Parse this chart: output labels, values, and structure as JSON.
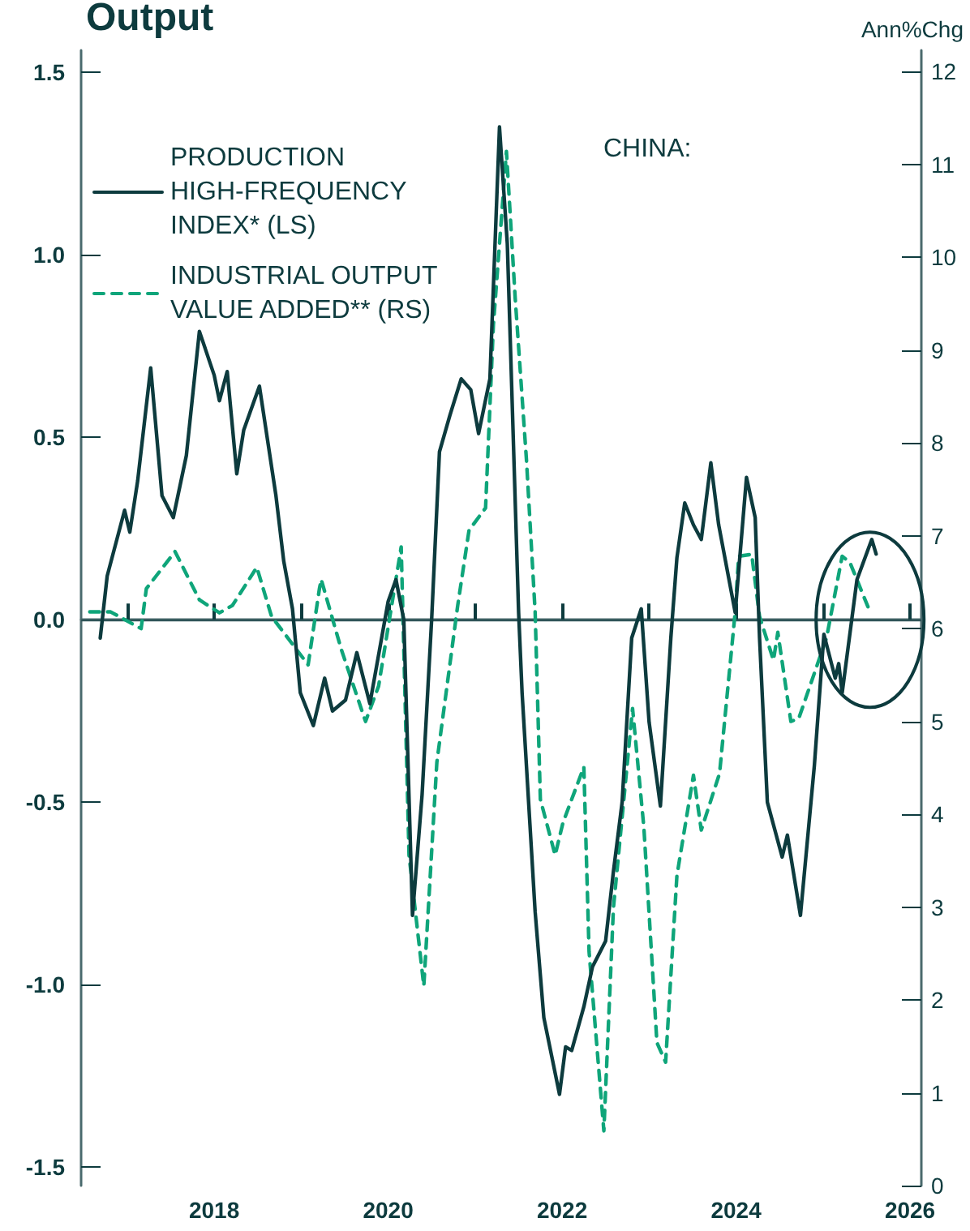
{
  "chart_data": {
    "type": "line",
    "title": "Output",
    "y2label": "Ann%Chg",
    "annotations": [
      "CHINA:"
    ],
    "xlim": [
      2016.47,
      2026.13
    ],
    "xticks": [
      {
        "value": 2017,
        "label": null
      },
      2018,
      {
        "value": 2019,
        "label": null
      },
      2020,
      {
        "value": 2021,
        "label": null
      },
      2022,
      {
        "value": 2023,
        "label": null
      },
      2024,
      {
        "value": 2025,
        "label": null
      },
      2026
    ],
    "ylim": [
      -1.55,
      1.56
    ],
    "yticks": [
      -1.5,
      {
        "value": -1,
        "label": "-1.0"
      },
      -0.5,
      {
        "value": 0,
        "label": "0.0"
      },
      0.5,
      {
        "value": 1,
        "label": "1.0"
      },
      1.5
    ],
    "y2lim": [
      0,
      12.23
    ],
    "y2ticks": [
      0,
      1,
      2,
      3,
      4,
      5,
      6,
      7,
      8,
      9,
      10,
      11,
      12
    ],
    "ref_lines": [
      {
        "axis": "y",
        "value": 0,
        "color": "#2f5458",
        "line_style": "solid"
      }
    ],
    "legend": "top left",
    "grid": false,
    "marker": "none",
    "series": [
      {
        "name": "PRODUCTION\nHIGH-FREQUENCY\nINDEX* (LS)",
        "color": "#0d3b3e",
        "line_style": "solid",
        "axis": "y",
        "x": [
          2016.69,
          2016.77,
          2016.97,
          2017.03,
          2017.12,
          2017.27,
          2017.4,
          2017.53,
          2017.68,
          2017.83,
          2018.0,
          2018.06,
          2018.15,
          2018.26,
          2018.34,
          2018.52,
          2018.71,
          2018.8,
          2018.9,
          2018.99,
          2019.14,
          2019.27,
          2019.36,
          2019.51,
          2019.64,
          2019.79,
          2020.0,
          2020.09,
          2020.18,
          2020.28,
          2020.39,
          2020.5,
          2020.59,
          2020.71,
          2020.84,
          2020.95,
          2021.04,
          2021.17,
          2021.28,
          2021.37,
          2021.5,
          2021.54,
          2021.69,
          2021.79,
          2021.97,
          2022.04,
          2022.11,
          2022.25,
          2022.35,
          2022.5,
          2022.59,
          2022.69,
          2022.8,
          2022.91,
          2023.0,
          2023.13,
          2023.25,
          2023.32,
          2023.41,
          2023.51,
          2023.6,
          2023.71,
          2023.8,
          2023.99,
          2024.12,
          2024.22,
          2024.27,
          2024.36,
          2024.53,
          2024.59,
          2024.74,
          2024.9,
          2025.01,
          2025.14,
          2025.18,
          2025.22,
          2025.39,
          2025.56,
          2025.61
        ],
        "values": [
          -0.05,
          0.12,
          0.3,
          0.24,
          0.38,
          0.69,
          0.34,
          0.28,
          0.45,
          0.79,
          0.67,
          0.6,
          0.68,
          0.4,
          0.52,
          0.64,
          0.34,
          0.16,
          0.03,
          -0.2,
          -0.29,
          -0.16,
          -0.25,
          -0.22,
          -0.09,
          -0.23,
          0.05,
          0.11,
          0.0,
          -0.81,
          -0.48,
          0.0,
          0.46,
          0.56,
          0.66,
          0.63,
          0.51,
          0.66,
          1.35,
          1.03,
          0.02,
          -0.2,
          -0.8,
          -1.09,
          -1.3,
          -1.17,
          -1.18,
          -1.06,
          -0.95,
          -0.88,
          -0.69,
          -0.5,
          -0.05,
          0.03,
          -0.28,
          -0.51,
          -0.05,
          0.17,
          0.32,
          0.26,
          0.22,
          0.43,
          0.26,
          0.02,
          0.39,
          0.28,
          -0.05,
          -0.5,
          -0.65,
          -0.59,
          -0.81,
          -0.4,
          -0.04,
          -0.16,
          -0.12,
          -0.2,
          0.11,
          0.22,
          0.18
        ]
      },
      {
        "name": "INDUSTRIAL OUTPUT\nVALUE ADDED** (RS)",
        "color": "#0fa57a",
        "line_style": "dashed",
        "axis": "y2",
        "x": [
          2016.57,
          2016.81,
          2017.16,
          2017.22,
          2017.55,
          2017.83,
          2018.06,
          2018.21,
          2018.49,
          2018.66,
          2019.08,
          2019.21,
          2019.23,
          2019.46,
          2019.74,
          2019.89,
          2020.15,
          2020.24,
          2020.41,
          2020.56,
          2020.8,
          2020.93,
          2021.12,
          2021.21,
          2021.36,
          2021.46,
          2021.59,
          2021.69,
          2021.75,
          2021.92,
          2022.01,
          2022.25,
          2022.31,
          2022.48,
          2022.59,
          2022.81,
          2022.94,
          2023.09,
          2023.19,
          2023.32,
          2023.51,
          2023.6,
          2023.81,
          2023.99,
          2024.03,
          2024.18,
          2024.27,
          2024.43,
          2024.48,
          2024.63,
          2024.72,
          2025.04,
          2025.22,
          2025.31,
          2025.54
        ],
        "values": [
          6.18,
          6.18,
          6.0,
          6.43,
          6.83,
          6.31,
          6.17,
          6.25,
          6.66,
          6.13,
          5.61,
          6.43,
          6.53,
          5.78,
          5.0,
          5.38,
          6.88,
          3.56,
          2.15,
          4.56,
          6.25,
          7.06,
          7.3,
          9.27,
          11.14,
          9.57,
          7.82,
          6.18,
          4.16,
          3.56,
          3.91,
          4.51,
          2.52,
          0.59,
          2.99,
          5.14,
          3.86,
          1.54,
          1.33,
          3.34,
          4.42,
          3.83,
          4.44,
          6.18,
          6.78,
          6.8,
          6.13,
          5.66,
          5.96,
          5.0,
          5.03,
          5.9,
          6.78,
          6.71,
          6.18
        ]
      }
    ]
  }
}
